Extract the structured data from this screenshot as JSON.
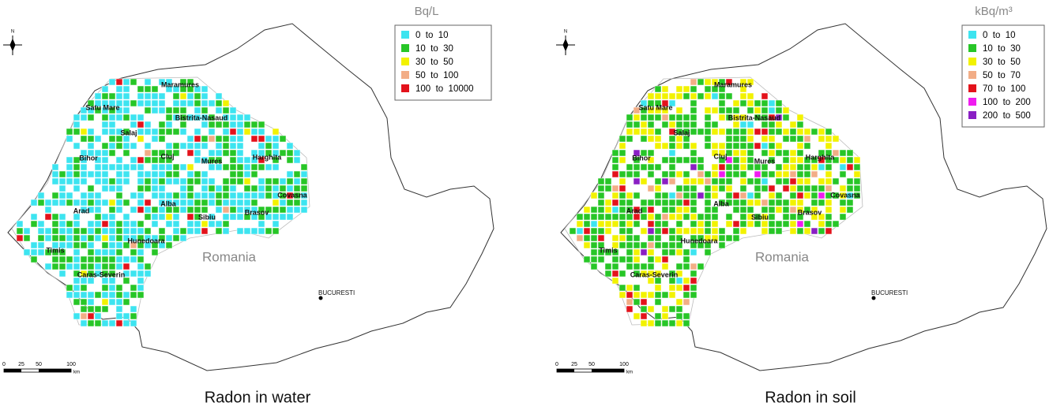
{
  "panels": [
    {
      "unit": "Bq/L",
      "caption": "Radon in water",
      "north": "N",
      "country": "Romania",
      "capital": "BUCURESTI",
      "legend": [
        {
          "label": "0  to  10",
          "color": "#3de4f0"
        },
        {
          "label": "10  to  30",
          "color": "#27c627"
        },
        {
          "label": "30  to  50",
          "color": "#f2f200"
        },
        {
          "label": "50  to  100",
          "color": "#f2ad86"
        },
        {
          "label": "100  to  10000",
          "color": "#e3121b"
        }
      ],
      "counties": [
        "Maramures",
        "Satu Mare",
        "Bistrita-Nasaud",
        "Salaj",
        "Bihor",
        "Cluj",
        "Mures",
        "Harghita",
        "Covasna",
        "Alba",
        "Arad",
        "Sibiu",
        "Brasov",
        "Hunedoara",
        "Timis",
        "Caras-Severin"
      ],
      "scale": {
        "ticks": [
          "0",
          "25",
          "50",
          "100"
        ],
        "unit": "km"
      }
    },
    {
      "unit": "kBq/m³",
      "caption": "Radon in soil",
      "north": "N",
      "country": "Romania",
      "capital": "BUCURESTI",
      "legend": [
        {
          "label": "0  to  10",
          "color": "#3de4f0"
        },
        {
          "label": "10  to  30",
          "color": "#27c627"
        },
        {
          "label": "30  to  50",
          "color": "#f2f200"
        },
        {
          "label": "50  to  70",
          "color": "#f2ad86"
        },
        {
          "label": "70  to  100",
          "color": "#e3121b"
        },
        {
          "label": "100  to  200",
          "color": "#f01cf0"
        },
        {
          "label": "200  to  500",
          "color": "#8a1fc4"
        }
      ],
      "counties": [
        "Maramures",
        "Satu Mare",
        "Bistrita-Nasaud",
        "Salaj",
        "Bihor",
        "Cluj",
        "Mures",
        "Harghita",
        "Covasna",
        "Alba",
        "Arad",
        "Sibiu",
        "Brasov",
        "Hunedoara",
        "Timis",
        "Caras-Severin"
      ],
      "scale": {
        "ticks": [
          "0",
          "25",
          "50",
          "100"
        ],
        "unit": "km"
      }
    }
  ]
}
